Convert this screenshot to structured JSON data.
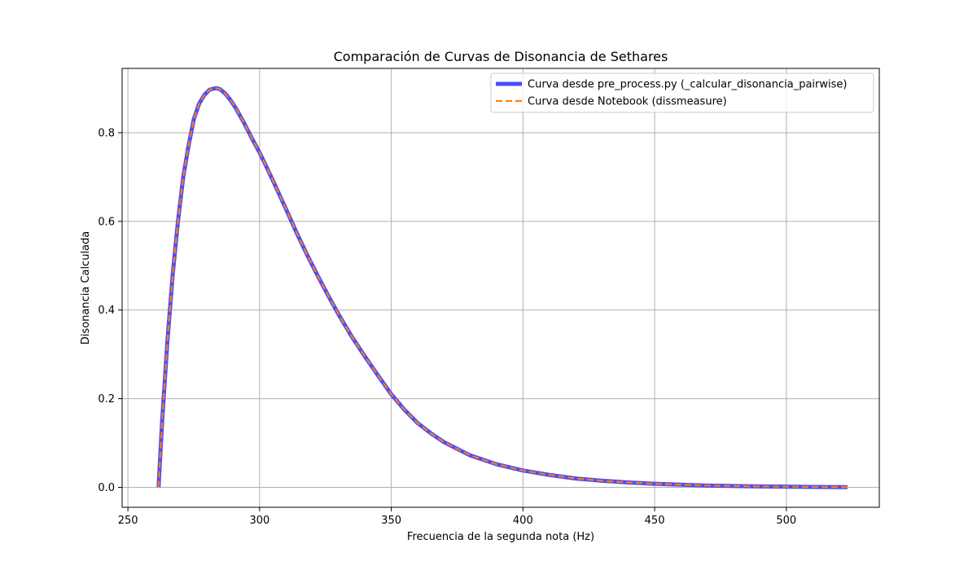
{
  "chart_data": {
    "type": "line",
    "title": "Comparación de Curvas de Disonancia de Sethares",
    "xlabel": "Frecuencia de la segunda nota (Hz)",
    "ylabel": "Disonancia Calculada",
    "xlim": [
      247.8,
      535.3
    ],
    "ylim": [
      -0.045,
      0.945
    ],
    "xticks": [
      250,
      300,
      350,
      400,
      450,
      500
    ],
    "yticks": [
      0.0,
      0.2,
      0.4,
      0.6,
      0.8
    ],
    "xtick_labels": [
      "250",
      "300",
      "350",
      "400",
      "450",
      "500"
    ],
    "ytick_labels": [
      "0.0",
      "0.2",
      "0.4",
      "0.6",
      "0.8"
    ],
    "grid": true,
    "legend_position": "top-right",
    "x": [
      261.63,
      263,
      265,
      267,
      269,
      271,
      273,
      275,
      277,
      279,
      281,
      283,
      284,
      285,
      287,
      289,
      291,
      294,
      297,
      300,
      303,
      306,
      310,
      314,
      318,
      322,
      326,
      330,
      335,
      340,
      345,
      350,
      355,
      360,
      365,
      370,
      380,
      390,
      400,
      410,
      420,
      430,
      440,
      450,
      460,
      470,
      480,
      490,
      500,
      510,
      523.25
    ],
    "series": [
      {
        "name": "Curva desde pre_process.py (_calcular_disonancia_pairwise)",
        "color": "#4c4cff",
        "style": "solid",
        "values": [
          0.0,
          0.15,
          0.33,
          0.48,
          0.6,
          0.7,
          0.77,
          0.83,
          0.865,
          0.885,
          0.897,
          0.9,
          0.9,
          0.898,
          0.888,
          0.873,
          0.855,
          0.823,
          0.788,
          0.755,
          0.718,
          0.68,
          0.628,
          0.575,
          0.525,
          0.478,
          0.433,
          0.39,
          0.34,
          0.295,
          0.252,
          0.21,
          0.175,
          0.145,
          0.122,
          0.102,
          0.072,
          0.052,
          0.038,
          0.028,
          0.02,
          0.015,
          0.011,
          0.008,
          0.006,
          0.004,
          0.003,
          0.002,
          0.0015,
          0.001,
          0.0005
        ]
      },
      {
        "name": "Curva desde Notebook (dissmeasure)",
        "color": "#ff7f0e",
        "style": "dashed",
        "values": [
          0.0,
          0.15,
          0.33,
          0.48,
          0.6,
          0.7,
          0.77,
          0.83,
          0.865,
          0.885,
          0.897,
          0.9,
          0.9,
          0.898,
          0.888,
          0.873,
          0.855,
          0.823,
          0.788,
          0.755,
          0.718,
          0.68,
          0.628,
          0.575,
          0.525,
          0.478,
          0.433,
          0.39,
          0.34,
          0.295,
          0.252,
          0.21,
          0.175,
          0.145,
          0.122,
          0.102,
          0.072,
          0.052,
          0.038,
          0.028,
          0.02,
          0.015,
          0.011,
          0.008,
          0.006,
          0.004,
          0.003,
          0.002,
          0.0015,
          0.001,
          0.0005
        ]
      }
    ]
  }
}
